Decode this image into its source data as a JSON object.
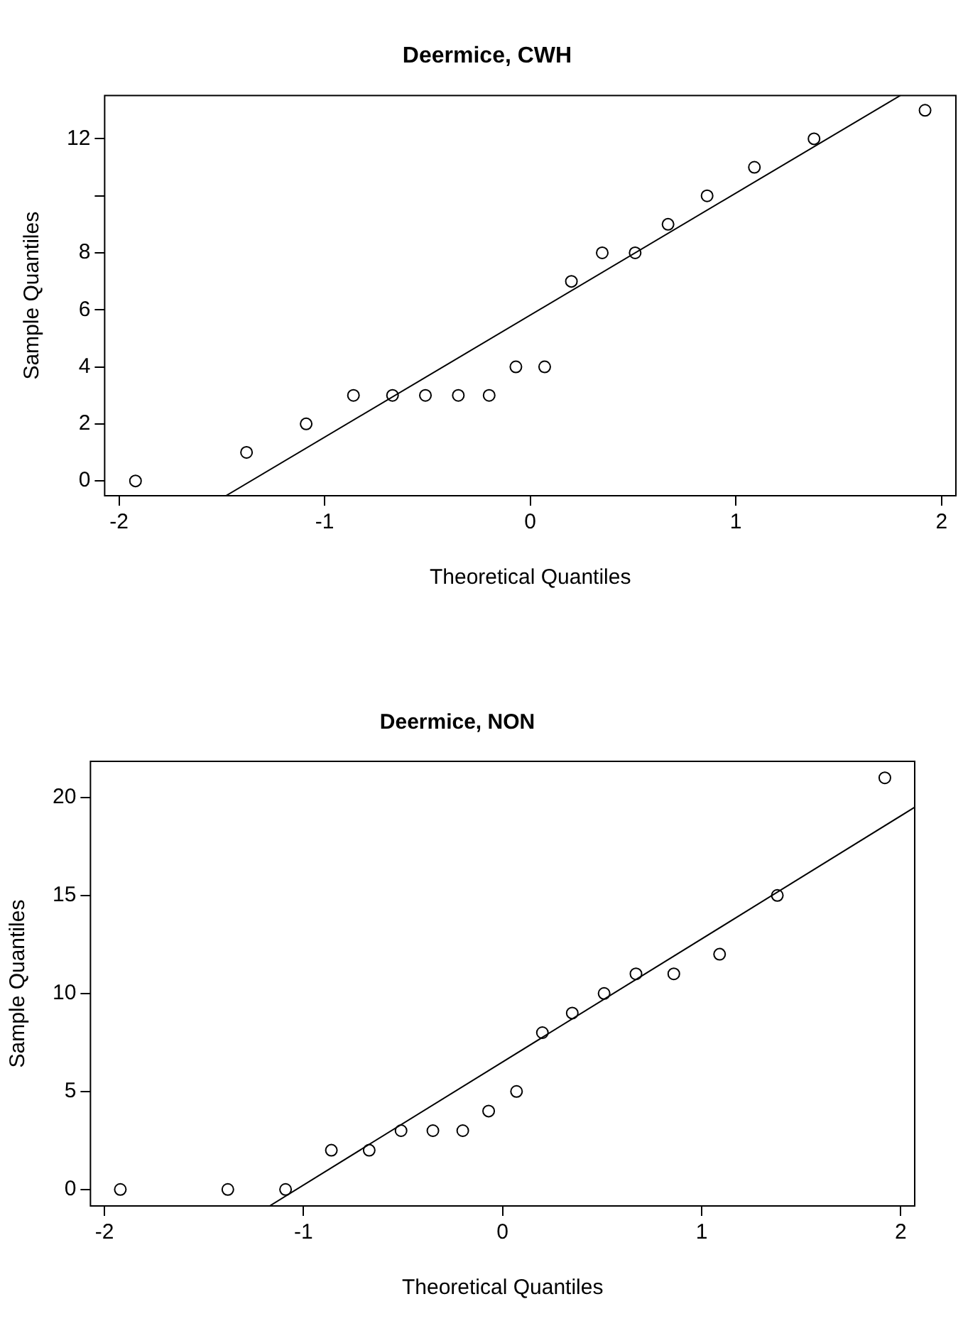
{
  "chart_data": [
    {
      "type": "scatter",
      "title": "Deermice, CWH",
      "xlabel": "Theoretical Quantiles",
      "ylabel": "Sample Quantiles",
      "xlim": [
        -2.07,
        2.07
      ],
      "ylim": [
        -0.52,
        13.52
      ],
      "xticks": [
        -2,
        -1,
        0,
        1,
        2
      ],
      "yticks": [
        0,
        2,
        4,
        6,
        8,
        {
          "value": 10,
          "label": null
        },
        12
      ],
      "grid": false,
      "legend": false,
      "series": [
        {
          "type": "scatter",
          "marker": "circle",
          "color": "#000000",
          "x": [
            -1.92,
            -1.38,
            -1.09,
            -0.86,
            -0.67,
            -0.51,
            -0.35,
            -0.2,
            -0.07,
            0.07,
            0.2,
            0.35,
            0.51,
            0.67,
            0.86,
            1.09,
            1.38,
            1.92
          ],
          "values": [
            0,
            1,
            2,
            3,
            3,
            3,
            3,
            3,
            4,
            4,
            7,
            8,
            8,
            9,
            10,
            11,
            12,
            13
          ]
        },
        {
          "type": "line",
          "color": "#000000",
          "x": [
            -1.48,
            1.8
          ],
          "values": [
            -0.52,
            13.52
          ]
        }
      ]
    },
    {
      "type": "scatter",
      "title": "Deermice, NON",
      "xlabel": "Theoretical Quantiles",
      "ylabel": "Sample Quantiles",
      "xlim": [
        -2.07,
        2.07
      ],
      "ylim": [
        -0.84,
        21.84
      ],
      "xticks": [
        -2,
        -1,
        0,
        1,
        2
      ],
      "yticks": [
        0,
        5,
        10,
        15,
        20
      ],
      "grid": false,
      "legend": false,
      "series": [
        {
          "type": "scatter",
          "marker": "circle",
          "color": "#000000",
          "x": [
            -1.92,
            -1.38,
            -1.09,
            -0.86,
            -0.67,
            -0.51,
            -0.35,
            -0.2,
            -0.07,
            0.07,
            0.2,
            0.35,
            0.51,
            0.67,
            0.86,
            1.09,
            1.38,
            1.92
          ],
          "values": [
            0,
            0,
            0,
            2,
            2,
            3,
            3,
            3,
            4,
            5,
            8,
            9,
            10,
            11,
            11,
            12,
            15,
            21
          ]
        },
        {
          "type": "line",
          "color": "#000000",
          "x": [
            -1.17,
            2.07
          ],
          "values": [
            -0.84,
            19.5
          ]
        }
      ]
    }
  ]
}
